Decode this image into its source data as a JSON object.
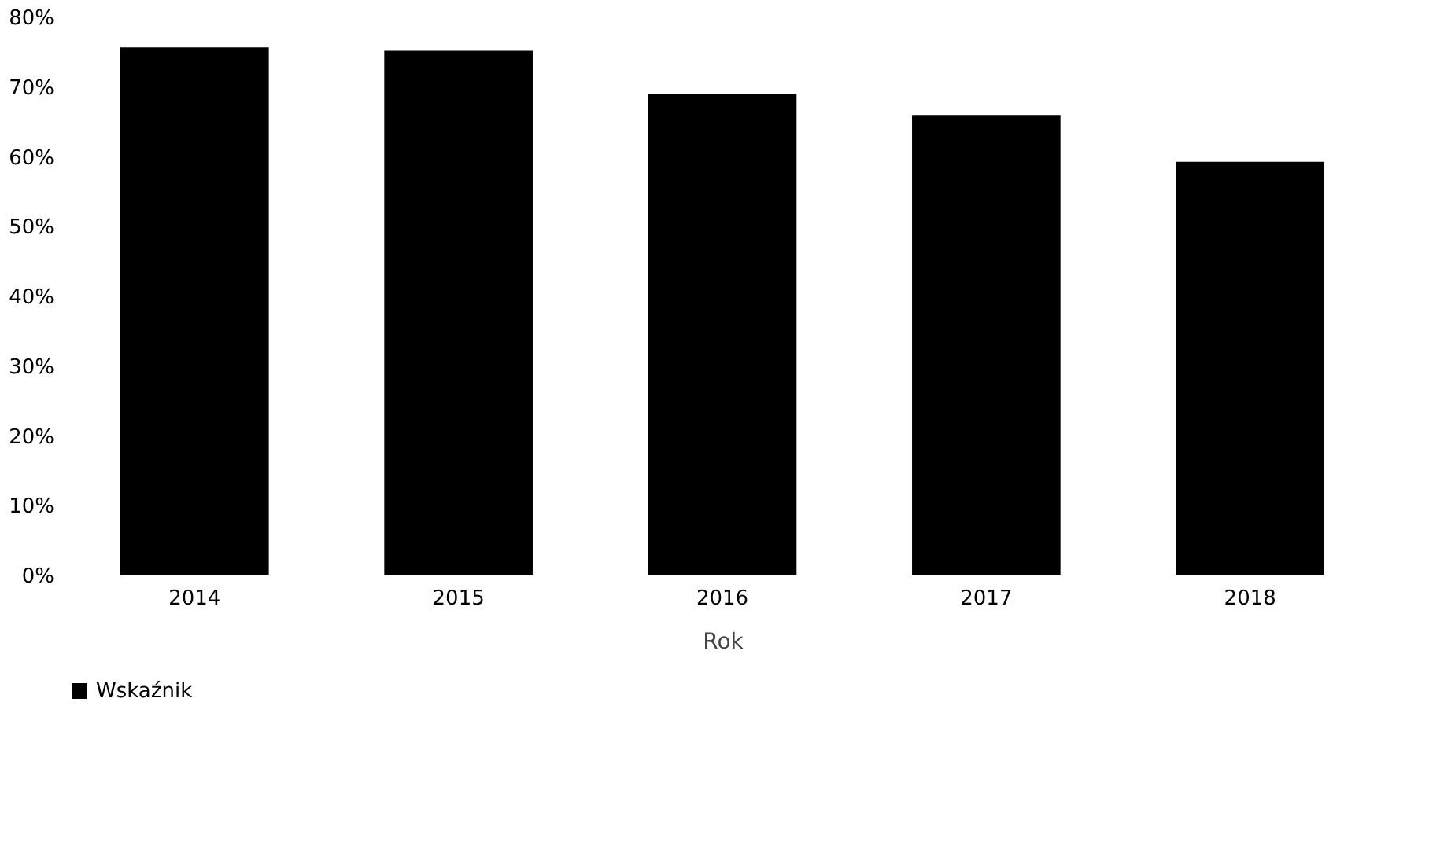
{
  "chart_data": {
    "type": "bar",
    "xlabel": "Rok",
    "categories": [
      "2014",
      "2015",
      "2016",
      "2017",
      "2018"
    ],
    "series": [
      {
        "name": "Wskaźnik",
        "color": "#000000",
        "values": [
          75.7,
          75.2,
          69.0,
          66.0,
          59.3
        ]
      }
    ],
    "ylim": [
      0,
      80
    ],
    "yticks": [
      {
        "value": 0,
        "label": "0%"
      },
      {
        "value": 10,
        "label": "10%"
      },
      {
        "value": 20,
        "label": "20%"
      },
      {
        "value": 30,
        "label": "30%"
      },
      {
        "value": 40,
        "label": "40%"
      },
      {
        "value": 50,
        "label": "50%"
      },
      {
        "value": 60,
        "label": "60%"
      },
      {
        "value": 70,
        "label": "70%"
      },
      {
        "value": 80,
        "label": "80%"
      }
    ],
    "grid": false,
    "legend": "bottom"
  }
}
